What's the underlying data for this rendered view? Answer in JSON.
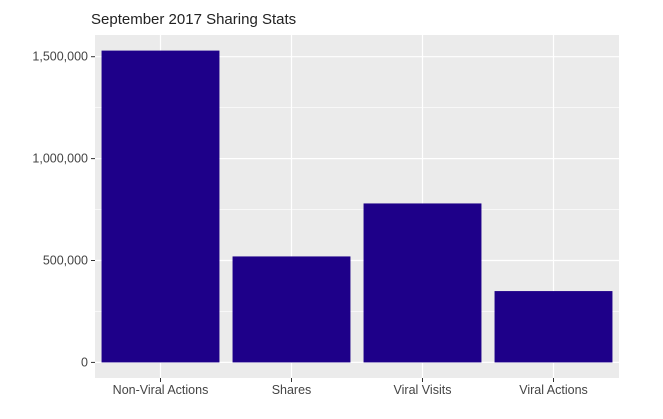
{
  "chart_data": {
    "type": "bar",
    "title": "September 2017 Sharing Stats",
    "categories": [
      "Non-Viral Actions",
      "Shares",
      "Viral Visits",
      "Viral Actions"
    ],
    "values": [
      1530000,
      520000,
      780000,
      350000
    ],
    "yticks": [
      0,
      500000,
      1000000,
      1500000
    ],
    "ytick_labels": [
      "0",
      "500,000",
      "1,000,000",
      "1,500,000"
    ],
    "ylim": [
      -76500,
      1606500
    ],
    "xlabel": "",
    "ylabel": "",
    "grid": true,
    "legend": "none",
    "colors": {
      "bar": "#1e0089",
      "panel": "#ebebeb",
      "grid": "#ffffff",
      "text": "#444444"
    }
  }
}
